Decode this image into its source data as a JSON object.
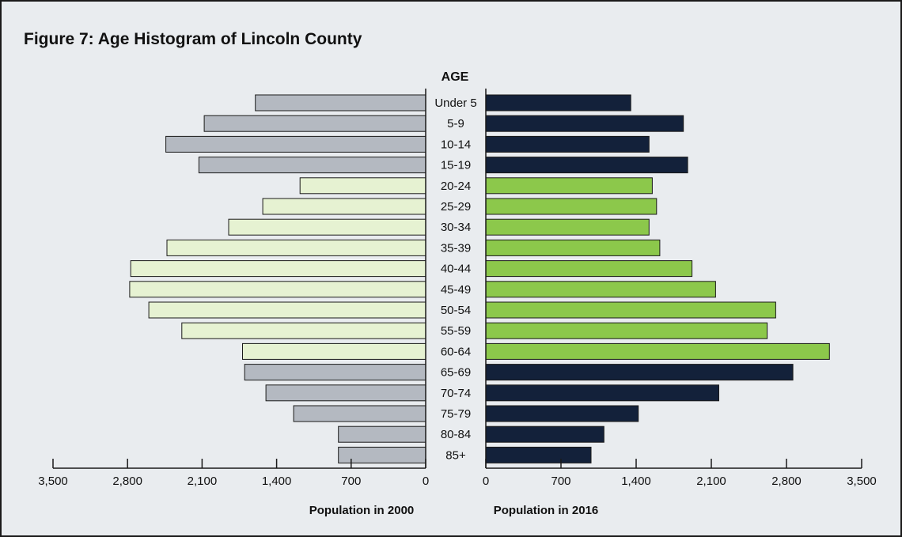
{
  "colors": {
    "panel_bg": "#e9ecef",
    "left_bar_gray": "#b4b9c1",
    "left_bar_light": "#e6f2d2",
    "right_bar_navy": "#13213a",
    "right_bar_green": "#8cc84b",
    "bar_stroke": "#1a1a1a",
    "axis": "#1a1a1a"
  },
  "chart_data": {
    "type": "bar",
    "orientation": "horizontal",
    "layout": "back-to-back",
    "title": "Figure 7: Age Histogram of Lincoln County",
    "category_header": "AGE",
    "categories": [
      "Under 5",
      "5-9",
      "10-14",
      "15-19",
      "20-24",
      "25-29",
      "30-34",
      "35-39",
      "40-44",
      "45-49",
      "50-54",
      "55-59",
      "60-64",
      "65-69",
      "70-74",
      "75-79",
      "80-84",
      "85+"
    ],
    "highlight_groups": [
      "20-24",
      "25-29",
      "30-34",
      "35-39",
      "40-44",
      "45-49",
      "50-54",
      "55-59",
      "60-64"
    ],
    "series": [
      {
        "name": "Population in 2000",
        "side": "left",
        "values": [
          1600,
          2080,
          2440,
          2130,
          1180,
          1530,
          1850,
          2430,
          2770,
          2780,
          2600,
          2290,
          1720,
          1700,
          1500,
          1240,
          820,
          820
        ]
      },
      {
        "name": "Population in 2016",
        "side": "right",
        "values": [
          1350,
          1840,
          1520,
          1880,
          1550,
          1590,
          1520,
          1620,
          1920,
          2140,
          2700,
          2620,
          3200,
          2860,
          2170,
          1420,
          1100,
          980
        ]
      }
    ],
    "left_axis": {
      "label": "Population in 2000",
      "ticks": [
        "3,500",
        "2,800",
        "2,100",
        "1,400",
        "700",
        "0"
      ],
      "lim": [
        0,
        3500
      ],
      "reversed": true
    },
    "right_axis": {
      "label": "Population in 2016",
      "ticks": [
        "0",
        "700",
        "1,400",
        "2,100",
        "2,800",
        "3,500"
      ],
      "lim": [
        0,
        3500
      ]
    },
    "grid": false,
    "legend": "none"
  }
}
